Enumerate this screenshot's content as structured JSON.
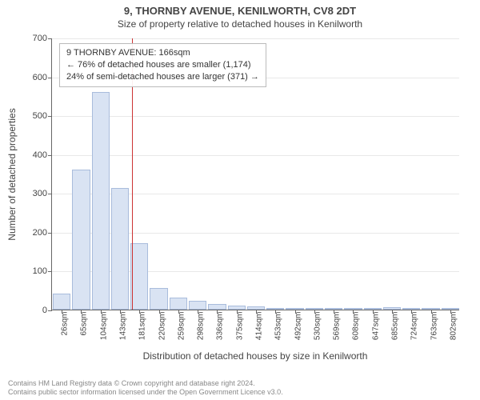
{
  "title": "9, THORNBY AVENUE, KENILWORTH, CV8 2DT",
  "subtitle": "Size of property relative to detached houses in Kenilworth",
  "chart": {
    "type": "histogram",
    "background_color": "#ffffff",
    "grid_color": "#e8e8e8",
    "axis_color": "#666666",
    "bar_fill": "#d9e3f3",
    "bar_border": "#a9bcdc",
    "ref_line_color": "#cc3333",
    "title_fontsize": 13,
    "subtitle_fontsize": 12,
    "axis_label_fontsize": 12,
    "tick_fontsize": 11,
    "x_tick_fontsize": 10,
    "annotation_fontsize": 11,
    "footer_fontsize": 9,
    "footer_color": "#888888",
    "y_axis": {
      "title": "Number of detached properties",
      "min": 0,
      "max": 700,
      "tick_step": 100,
      "ticks": [
        0,
        100,
        200,
        300,
        400,
        500,
        600,
        700
      ]
    },
    "x_axis": {
      "title": "Distribution of detached houses by size in Kenilworth",
      "unit_suffix": "sqm",
      "tick_labels": [
        "26sqm",
        "65sqm",
        "104sqm",
        "143sqm",
        "181sqm",
        "220sqm",
        "259sqm",
        "298sqm",
        "336sqm",
        "375sqm",
        "414sqm",
        "453sqm",
        "492sqm",
        "530sqm",
        "569sqm",
        "608sqm",
        "647sqm",
        "685sqm",
        "724sqm",
        "763sqm",
        "802sqm"
      ]
    },
    "bars": [
      42,
      360,
      560,
      312,
      170,
      55,
      30,
      22,
      15,
      10,
      8,
      5,
      4,
      3,
      2,
      2,
      2,
      6,
      1,
      1,
      1
    ],
    "reference": {
      "value_sqm": 166,
      "bar_index_after": 3
    },
    "annotation": {
      "lines": [
        "9 THORNBY AVENUE: 166sqm",
        "← 76% of detached houses are smaller (1,174)",
        "24% of semi-detached houses are larger (371) →"
      ],
      "border_color": "#bbbbbb",
      "bg_color": "rgba(255,255,255,0.92)"
    }
  },
  "footer": {
    "line1": "Contains HM Land Registry data © Crown copyright and database right 2024.",
    "line2": "Contains public sector information licensed under the Open Government Licence v3.0."
  }
}
